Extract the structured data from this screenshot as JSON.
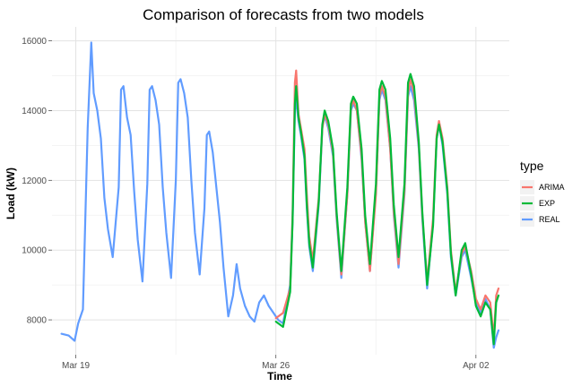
{
  "chart_data": {
    "type": "line",
    "title": "Comparison of forecasts from two models",
    "xlabel": "Time",
    "ylabel": "Load (kW)",
    "xlim": [
      "2018-03-18T04:00",
      "2018-04-03T04:00"
    ],
    "ylim": [
      7000,
      16400
    ],
    "x_ticks": [
      {
        "date": "2018-03-19",
        "label": "Mar 19"
      },
      {
        "date": "2018-03-26",
        "label": "Mar 26"
      },
      {
        "date": "2018-04-02",
        "label": "Apr 02"
      }
    ],
    "y_ticks": [
      8000,
      10000,
      12000,
      14000,
      16000
    ],
    "grid": true,
    "legend": {
      "title": "type",
      "position": "right"
    },
    "series": [
      {
        "name": "ARIMA",
        "color": "#F8766D",
        "points": [
          [
            "2018-03-26T00:00",
            8050
          ],
          [
            "2018-03-26T06:00",
            8200
          ],
          [
            "2018-03-26T12:00",
            8900
          ],
          [
            "2018-03-26T14:00",
            11000
          ],
          [
            "2018-03-26T16:00",
            14800
          ],
          [
            "2018-03-26T17:00",
            15150
          ],
          [
            "2018-03-26T19:00",
            13900
          ],
          [
            "2018-03-26T21:00",
            13500
          ],
          [
            "2018-03-27T00:00",
            12900
          ],
          [
            "2018-03-27T02:00",
            11600
          ],
          [
            "2018-03-27T04:00",
            10400
          ],
          [
            "2018-03-27T07:00",
            9700
          ],
          [
            "2018-03-27T12:00",
            11500
          ],
          [
            "2018-03-27T15:00",
            13500
          ],
          [
            "2018-03-27T17:00",
            13900
          ],
          [
            "2018-03-27T20:00",
            13600
          ],
          [
            "2018-03-28T00:00",
            12800
          ],
          [
            "2018-03-28T03:00",
            11000
          ],
          [
            "2018-03-28T07:00",
            9300
          ],
          [
            "2018-03-28T12:00",
            11600
          ],
          [
            "2018-03-28T15:00",
            14100
          ],
          [
            "2018-03-28T17:00",
            14300
          ],
          [
            "2018-03-28T20:00",
            14000
          ],
          [
            "2018-03-29T00:00",
            12700
          ],
          [
            "2018-03-29T03:00",
            10800
          ],
          [
            "2018-03-29T07:00",
            9400
          ],
          [
            "2018-03-29T12:00",
            11600
          ],
          [
            "2018-03-29T15:00",
            14400
          ],
          [
            "2018-03-29T17:00",
            14700
          ],
          [
            "2018-03-29T20:00",
            14400
          ],
          [
            "2018-03-30T00:00",
            12900
          ],
          [
            "2018-03-30T03:00",
            11100
          ],
          [
            "2018-03-30T07:00",
            9600
          ],
          [
            "2018-03-30T12:00",
            11700
          ],
          [
            "2018-03-30T15:00",
            14500
          ],
          [
            "2018-03-30T17:00",
            14900
          ],
          [
            "2018-03-30T20:00",
            14500
          ],
          [
            "2018-03-31T00:00",
            13000
          ],
          [
            "2018-03-31T03:00",
            11000
          ],
          [
            "2018-03-31T07:00",
            9100
          ],
          [
            "2018-03-31T12:00",
            10900
          ],
          [
            "2018-03-31T15:00",
            13300
          ],
          [
            "2018-03-31T17:00",
            13700
          ],
          [
            "2018-03-31T20:00",
            13200
          ],
          [
            "2018-04-01T00:00",
            11800
          ],
          [
            "2018-04-01T03:00",
            10000
          ],
          [
            "2018-04-01T07:00",
            8800
          ],
          [
            "2018-04-01T12:00",
            9900
          ],
          [
            "2018-04-01T15:00",
            10100
          ],
          [
            "2018-04-01T20:00",
            9400
          ],
          [
            "2018-04-02T00:00",
            8600
          ],
          [
            "2018-04-02T04:00",
            8300
          ],
          [
            "2018-04-02T08:00",
            8700
          ],
          [
            "2018-04-02T12:00",
            8500
          ],
          [
            "2018-04-02T15:00",
            7500
          ],
          [
            "2018-04-02T17:00",
            8700
          ],
          [
            "2018-04-02T19:00",
            8900
          ]
        ]
      },
      {
        "name": "EXP",
        "color": "#00BA38",
        "points": [
          [
            "2018-03-26T00:00",
            7950
          ],
          [
            "2018-03-26T06:00",
            7800
          ],
          [
            "2018-03-26T12:00",
            8800
          ],
          [
            "2018-03-26T14:00",
            10800
          ],
          [
            "2018-03-26T16:00",
            14200
          ],
          [
            "2018-03-26T17:00",
            14700
          ],
          [
            "2018-03-26T19:00",
            13800
          ],
          [
            "2018-03-26T21:00",
            13400
          ],
          [
            "2018-03-27T00:00",
            12700
          ],
          [
            "2018-03-27T02:00",
            11300
          ],
          [
            "2018-03-27T04:00",
            10200
          ],
          [
            "2018-03-27T07:00",
            9500
          ],
          [
            "2018-03-27T12:00",
            11400
          ],
          [
            "2018-03-27T15:00",
            13600
          ],
          [
            "2018-03-27T17:00",
            14000
          ],
          [
            "2018-03-27T20:00",
            13700
          ],
          [
            "2018-03-28T00:00",
            12900
          ],
          [
            "2018-03-28T03:00",
            11100
          ],
          [
            "2018-03-28T07:00",
            9400
          ],
          [
            "2018-03-28T12:00",
            11800
          ],
          [
            "2018-03-28T15:00",
            14200
          ],
          [
            "2018-03-28T17:00",
            14400
          ],
          [
            "2018-03-28T20:00",
            14200
          ],
          [
            "2018-03-29T00:00",
            12900
          ],
          [
            "2018-03-29T03:00",
            11000
          ],
          [
            "2018-03-29T07:00",
            9600
          ],
          [
            "2018-03-29T12:00",
            11900
          ],
          [
            "2018-03-29T15:00",
            14600
          ],
          [
            "2018-03-29T17:00",
            14850
          ],
          [
            "2018-03-29T20:00",
            14600
          ],
          [
            "2018-03-30T00:00",
            13200
          ],
          [
            "2018-03-30T03:00",
            11300
          ],
          [
            "2018-03-30T07:00",
            9800
          ],
          [
            "2018-03-30T12:00",
            11900
          ],
          [
            "2018-03-30T15:00",
            14800
          ],
          [
            "2018-03-30T17:00",
            15050
          ],
          [
            "2018-03-30T20:00",
            14700
          ],
          [
            "2018-03-31T00:00",
            13100
          ],
          [
            "2018-03-31T03:00",
            11100
          ],
          [
            "2018-03-31T07:00",
            9000
          ],
          [
            "2018-03-31T12:00",
            10700
          ],
          [
            "2018-03-31T15:00",
            13200
          ],
          [
            "2018-03-31T17:00",
            13600
          ],
          [
            "2018-03-31T20:00",
            13100
          ],
          [
            "2018-04-01T00:00",
            11700
          ],
          [
            "2018-04-01T03:00",
            9900
          ],
          [
            "2018-04-01T07:00",
            8700
          ],
          [
            "2018-04-01T12:00",
            10000
          ],
          [
            "2018-04-01T15:00",
            10200
          ],
          [
            "2018-04-01T20:00",
            9300
          ],
          [
            "2018-04-02T00:00",
            8400
          ],
          [
            "2018-04-02T04:00",
            8100
          ],
          [
            "2018-04-02T08:00",
            8500
          ],
          [
            "2018-04-02T12:00",
            8300
          ],
          [
            "2018-04-02T15:00",
            7300
          ],
          [
            "2018-04-02T17:00",
            8500
          ],
          [
            "2018-04-02T19:00",
            8700
          ]
        ]
      },
      {
        "name": "REAL",
        "color": "#619CFF",
        "points": [
          [
            "2018-03-18T12:00",
            7600
          ],
          [
            "2018-03-18T18:00",
            7550
          ],
          [
            "2018-03-18T23:00",
            7400
          ],
          [
            "2018-03-19T02:00",
            7900
          ],
          [
            "2018-03-19T06:00",
            8300
          ],
          [
            "2018-03-19T10:00",
            13500
          ],
          [
            "2018-03-19T13:00",
            15950
          ],
          [
            "2018-03-19T15:00",
            14500
          ],
          [
            "2018-03-19T18:00",
            14000
          ],
          [
            "2018-03-19T21:00",
            13200
          ],
          [
            "2018-03-20T00:00",
            11500
          ],
          [
            "2018-03-20T03:00",
            10600
          ],
          [
            "2018-03-20T07:00",
            9800
          ],
          [
            "2018-03-20T12:00",
            11800
          ],
          [
            "2018-03-20T14:00",
            14600
          ],
          [
            "2018-03-20T16:00",
            14700
          ],
          [
            "2018-03-20T19:00",
            13800
          ],
          [
            "2018-03-20T22:00",
            13300
          ],
          [
            "2018-03-21T01:00",
            11700
          ],
          [
            "2018-03-21T04:00",
            10300
          ],
          [
            "2018-03-21T08:00",
            9100
          ],
          [
            "2018-03-21T12:00",
            11900
          ],
          [
            "2018-03-21T14:00",
            14600
          ],
          [
            "2018-03-21T16:00",
            14700
          ],
          [
            "2018-03-21T19:00",
            14300
          ],
          [
            "2018-03-21T22:00",
            13600
          ],
          [
            "2018-03-22T01:00",
            11800
          ],
          [
            "2018-03-22T04:00",
            10500
          ],
          [
            "2018-03-22T08:00",
            9200
          ],
          [
            "2018-03-22T12:00",
            12000
          ],
          [
            "2018-03-22T14:00",
            14800
          ],
          [
            "2018-03-22T16:00",
            14900
          ],
          [
            "2018-03-22T19:00",
            14500
          ],
          [
            "2018-03-22T22:00",
            13800
          ],
          [
            "2018-03-23T01:00",
            12000
          ],
          [
            "2018-03-23T04:00",
            10500
          ],
          [
            "2018-03-23T08:00",
            9300
          ],
          [
            "2018-03-23T12:00",
            11200
          ],
          [
            "2018-03-23T14:00",
            13300
          ],
          [
            "2018-03-23T16:00",
            13400
          ],
          [
            "2018-03-23T19:00",
            12800
          ],
          [
            "2018-03-23T22:00",
            11800
          ],
          [
            "2018-03-24T01:00",
            10800
          ],
          [
            "2018-03-24T04:00",
            9500
          ],
          [
            "2018-03-24T08:00",
            8100
          ],
          [
            "2018-03-24T12:00",
            8700
          ],
          [
            "2018-03-24T15:00",
            9600
          ],
          [
            "2018-03-24T18:00",
            8900
          ],
          [
            "2018-03-24T22:00",
            8400
          ],
          [
            "2018-03-25T02:00",
            8100
          ],
          [
            "2018-03-25T06:00",
            7950
          ],
          [
            "2018-03-25T10:00",
            8500
          ],
          [
            "2018-03-25T14:00",
            8700
          ],
          [
            "2018-03-25T18:00",
            8400
          ],
          [
            "2018-03-25T22:00",
            8200
          ],
          [
            "2018-03-26T02:00",
            8000
          ],
          [
            "2018-03-26T06:00",
            7900
          ],
          [
            "2018-03-26T12:00",
            9000
          ],
          [
            "2018-03-26T14:00",
            10800
          ],
          [
            "2018-03-26T16:00",
            14000
          ],
          [
            "2018-03-26T17:00",
            14300
          ],
          [
            "2018-03-26T19:00",
            13700
          ],
          [
            "2018-03-26T21:00",
            13300
          ],
          [
            "2018-03-27T00:00",
            12600
          ],
          [
            "2018-03-27T02:00",
            11200
          ],
          [
            "2018-03-27T04:00",
            10100
          ],
          [
            "2018-03-27T07:00",
            9400
          ],
          [
            "2018-03-27T12:00",
            11300
          ],
          [
            "2018-03-27T15:00",
            13500
          ],
          [
            "2018-03-27T17:00",
            13850
          ],
          [
            "2018-03-27T20:00",
            13500
          ],
          [
            "2018-03-28T00:00",
            12700
          ],
          [
            "2018-03-28T03:00",
            10900
          ],
          [
            "2018-03-28T07:00",
            9200
          ],
          [
            "2018-03-28T12:00",
            11600
          ],
          [
            "2018-03-28T15:00",
            14000
          ],
          [
            "2018-03-28T17:00",
            14200
          ],
          [
            "2018-03-28T20:00",
            14000
          ],
          [
            "2018-03-29T00:00",
            12600
          ],
          [
            "2018-03-29T03:00",
            10800
          ],
          [
            "2018-03-29T07:00",
            9400
          ],
          [
            "2018-03-29T12:00",
            11700
          ],
          [
            "2018-03-29T15:00",
            14300
          ],
          [
            "2018-03-29T17:00",
            14600
          ],
          [
            "2018-03-29T20:00",
            14300
          ],
          [
            "2018-03-30T00:00",
            12900
          ],
          [
            "2018-03-30T03:00",
            11000
          ],
          [
            "2018-03-30T07:00",
            9500
          ],
          [
            "2018-03-30T12:00",
            11600
          ],
          [
            "2018-03-30T15:00",
            14400
          ],
          [
            "2018-03-30T17:00",
            14700
          ],
          [
            "2018-03-30T20:00",
            14300
          ],
          [
            "2018-03-31T00:00",
            12900
          ],
          [
            "2018-03-31T03:00",
            10900
          ],
          [
            "2018-03-31T07:00",
            8900
          ],
          [
            "2018-03-31T12:00",
            10800
          ],
          [
            "2018-03-31T15:00",
            13200
          ],
          [
            "2018-03-31T17:00",
            13600
          ],
          [
            "2018-03-31T20:00",
            13000
          ],
          [
            "2018-04-01T00:00",
            11600
          ],
          [
            "2018-04-01T03:00",
            9800
          ],
          [
            "2018-04-01T07:00",
            8700
          ],
          [
            "2018-04-01T12:00",
            9800
          ],
          [
            "2018-04-01T15:00",
            10000
          ],
          [
            "2018-04-01T20:00",
            9200
          ],
          [
            "2018-04-02T00:00",
            8500
          ],
          [
            "2018-04-02T04:00",
            8200
          ],
          [
            "2018-04-02T08:00",
            8600
          ],
          [
            "2018-04-02T12:00",
            8300
          ],
          [
            "2018-04-02T15:00",
            7200
          ],
          [
            "2018-04-02T17:00",
            7500
          ],
          [
            "2018-04-02T19:00",
            7700
          ]
        ]
      }
    ]
  }
}
